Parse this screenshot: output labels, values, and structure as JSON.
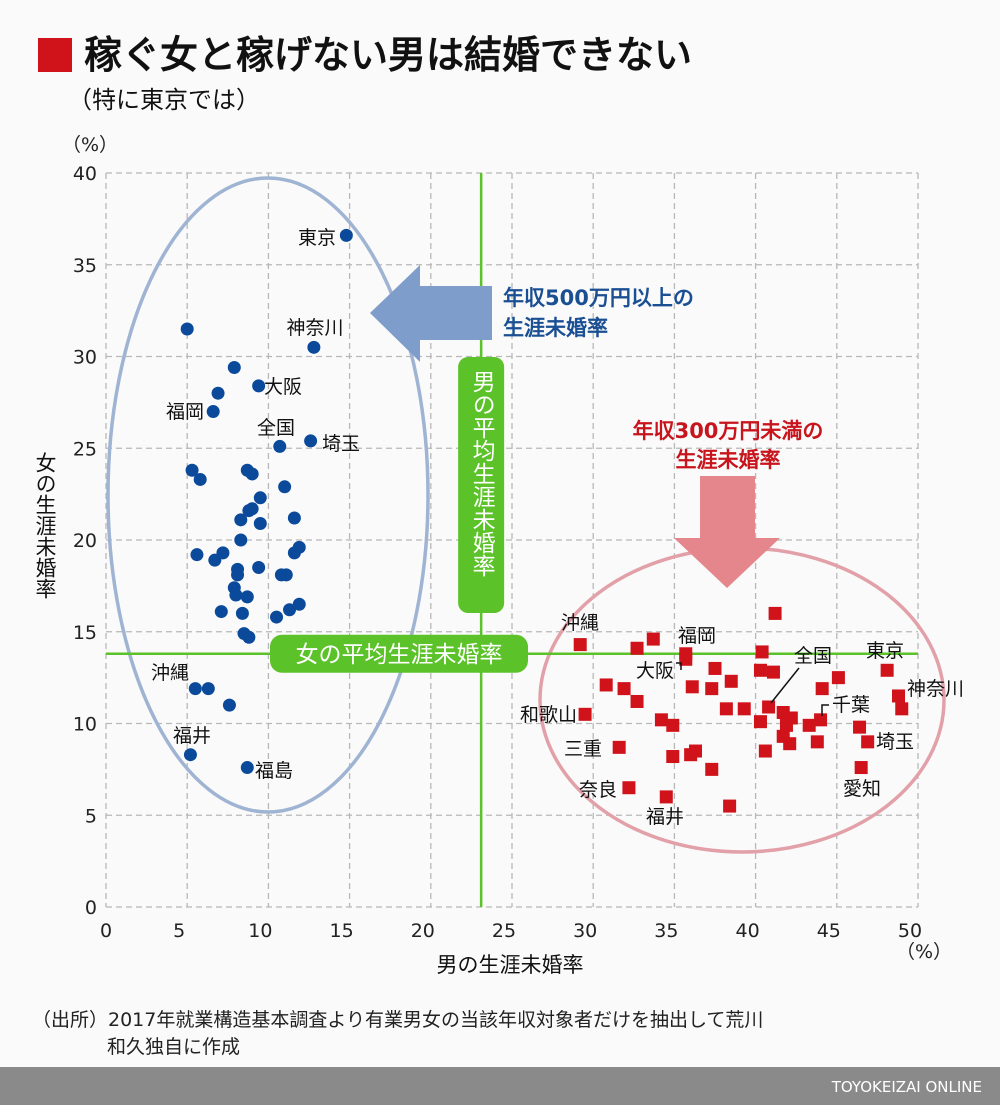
{
  "title": "稼ぐ女と稼げない男は結婚できない",
  "subtitle": "（特に東京では）",
  "source_line1": "（出所）2017年就業構造基本調査より有業男女の当該年収対象者だけを抽出して荒川",
  "source_line2": "和久独自に作成",
  "footer_brand": "TOYOKEIZAI ONLINE",
  "colors": {
    "accent_red": "#d0121b",
    "blue_points": "#0b4a9a",
    "red_points": "#d0121b",
    "green_ref": "#5cc22a",
    "blue_ellipse": "#9fb3d3",
    "red_ellipse": "#e2a0a8",
    "blue_arrow": "#7f9dcb",
    "red_arrow": "#e5858c",
    "footer_bar": "#8a8a8a"
  },
  "chart_data": {
    "type": "scatter",
    "xlabel": "男の生涯未婚率",
    "ylabel": "女の生涯未婚率",
    "x_unit": "（%）",
    "y_unit": "（%）",
    "xlim": [
      0,
      50
    ],
    "ylim": [
      0,
      40
    ],
    "xticks": [
      "0",
      "5",
      "10",
      "15",
      "20",
      "25",
      "30",
      "35",
      "40",
      "45",
      "50"
    ],
    "yticks": [
      "0",
      "5",
      "10",
      "15",
      "20",
      "25",
      "30",
      "35",
      "40"
    ],
    "grid": true,
    "reference_lines": {
      "male_avg": {
        "x": 23.1,
        "label": "男の平均生涯未婚率"
      },
      "female_avg": {
        "y": 13.8,
        "label": "女の平均生涯未婚率"
      }
    },
    "annotations": {
      "blue": [
        "年収500万円以上の",
        "生涯未婚率"
      ],
      "red": [
        "年収300万円未満の",
        "生涯未婚率"
      ]
    },
    "series": [
      {
        "marker": "circle",
        "points": [
          {
            "x": 14.8,
            "y": 36.6,
            "label": "東京"
          },
          {
            "x": 5.0,
            "y": 31.5
          },
          {
            "x": 12.8,
            "y": 30.5,
            "label": "神奈川"
          },
          {
            "x": 7.9,
            "y": 29.4
          },
          {
            "x": 9.4,
            "y": 28.4,
            "label": "大阪"
          },
          {
            "x": 6.9,
            "y": 28.0
          },
          {
            "x": 6.6,
            "y": 27.0,
            "label": "福岡"
          },
          {
            "x": 10.7,
            "y": 25.1,
            "label": "全国"
          },
          {
            "x": 12.6,
            "y": 25.4,
            "label": "埼玉"
          },
          {
            "x": 5.3,
            "y": 23.8
          },
          {
            "x": 5.8,
            "y": 23.3
          },
          {
            "x": 8.7,
            "y": 23.8
          },
          {
            "x": 9.0,
            "y": 23.6
          },
          {
            "x": 11.0,
            "y": 22.9
          },
          {
            "x": 9.5,
            "y": 22.3
          },
          {
            "x": 8.8,
            "y": 21.6
          },
          {
            "x": 9.0,
            "y": 21.7
          },
          {
            "x": 11.6,
            "y": 21.2
          },
          {
            "x": 8.3,
            "y": 21.1
          },
          {
            "x": 9.5,
            "y": 20.9
          },
          {
            "x": 8.3,
            "y": 20.0
          },
          {
            "x": 5.6,
            "y": 19.2
          },
          {
            "x": 6.7,
            "y": 18.9
          },
          {
            "x": 7.2,
            "y": 19.3
          },
          {
            "x": 11.9,
            "y": 19.6
          },
          {
            "x": 11.6,
            "y": 19.3
          },
          {
            "x": 8.1,
            "y": 18.4
          },
          {
            "x": 8.1,
            "y": 18.1
          },
          {
            "x": 9.4,
            "y": 18.5
          },
          {
            "x": 10.8,
            "y": 18.1
          },
          {
            "x": 11.1,
            "y": 18.1
          },
          {
            "x": 7.9,
            "y": 17.4
          },
          {
            "x": 8.0,
            "y": 17.0
          },
          {
            "x": 8.7,
            "y": 16.9
          },
          {
            "x": 11.9,
            "y": 16.5
          },
          {
            "x": 11.3,
            "y": 16.2
          },
          {
            "x": 7.1,
            "y": 16.1
          },
          {
            "x": 8.4,
            "y": 16.0
          },
          {
            "x": 10.5,
            "y": 15.8
          },
          {
            "x": 8.5,
            "y": 14.9
          },
          {
            "x": 8.8,
            "y": 14.7
          },
          {
            "x": 5.5,
            "y": 11.9,
            "label": "沖縄"
          },
          {
            "x": 6.3,
            "y": 11.9
          },
          {
            "x": 7.6,
            "y": 11.0
          },
          {
            "x": 5.2,
            "y": 8.3,
            "label": "福井"
          },
          {
            "x": 8.7,
            "y": 7.6,
            "label": "福島"
          }
        ]
      },
      {
        "marker": "square",
        "points": [
          {
            "x": 41.2,
            "y": 16.0
          },
          {
            "x": 29.2,
            "y": 14.3,
            "label": "沖縄"
          },
          {
            "x": 33.7,
            "y": 14.6
          },
          {
            "x": 32.7,
            "y": 14.1
          },
          {
            "x": 35.7,
            "y": 13.8,
            "label": "福岡"
          },
          {
            "x": 35.7,
            "y": 13.5,
            "label": "大阪"
          },
          {
            "x": 40.4,
            "y": 13.9
          },
          {
            "x": 40.3,
            "y": 12.9
          },
          {
            "x": 41.1,
            "y": 12.8
          },
          {
            "x": 37.5,
            "y": 13.0
          },
          {
            "x": 48.1,
            "y": 12.9,
            "label": "東京"
          },
          {
            "x": 45.1,
            "y": 12.5
          },
          {
            "x": 30.8,
            "y": 12.1
          },
          {
            "x": 31.9,
            "y": 11.9
          },
          {
            "x": 36.1,
            "y": 12.0
          },
          {
            "x": 37.3,
            "y": 11.9
          },
          {
            "x": 38.5,
            "y": 12.3
          },
          {
            "x": 44.1,
            "y": 11.9
          },
          {
            "x": 48.8,
            "y": 11.5,
            "label": "神奈川"
          },
          {
            "x": 32.7,
            "y": 11.2
          },
          {
            "x": 29.5,
            "y": 10.5,
            "label": "和歌山"
          },
          {
            "x": 49.0,
            "y": 10.8
          },
          {
            "x": 38.2,
            "y": 10.8
          },
          {
            "x": 39.3,
            "y": 10.8
          },
          {
            "x": 40.8,
            "y": 10.9,
            "label": "全国"
          },
          {
            "x": 41.7,
            "y": 10.6
          },
          {
            "x": 42.2,
            "y": 10.3
          },
          {
            "x": 40.3,
            "y": 10.1
          },
          {
            "x": 34.2,
            "y": 10.2
          },
          {
            "x": 34.9,
            "y": 9.9
          },
          {
            "x": 43.3,
            "y": 9.9
          },
          {
            "x": 44.0,
            "y": 10.2,
            "label": "千葉"
          },
          {
            "x": 41.9,
            "y": 9.9
          },
          {
            "x": 41.7,
            "y": 9.3
          },
          {
            "x": 42.1,
            "y": 8.9
          },
          {
            "x": 43.8,
            "y": 9.0
          },
          {
            "x": 46.4,
            "y": 9.8
          },
          {
            "x": 46.9,
            "y": 9.0,
            "label": "埼玉"
          },
          {
            "x": 31.6,
            "y": 8.7,
            "label": "三重"
          },
          {
            "x": 34.9,
            "y": 8.2
          },
          {
            "x": 36.0,
            "y": 8.3
          },
          {
            "x": 36.3,
            "y": 8.5
          },
          {
            "x": 40.6,
            "y": 8.5
          },
          {
            "x": 37.3,
            "y": 7.5
          },
          {
            "x": 46.5,
            "y": 7.6,
            "label": "愛知"
          },
          {
            "x": 32.2,
            "y": 6.5,
            "label": "奈良"
          },
          {
            "x": 34.5,
            "y": 6.0,
            "label": "福井"
          },
          {
            "x": 38.4,
            "y": 5.5
          }
        ]
      }
    ]
  }
}
